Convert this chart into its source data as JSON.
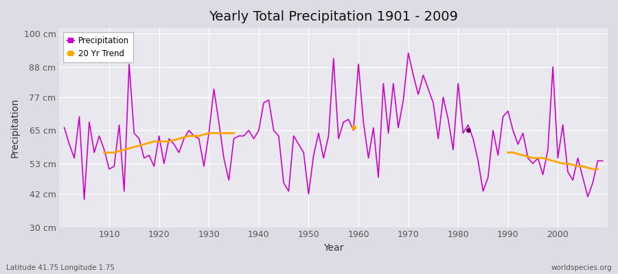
{
  "title": "Yearly Total Precipitation 1901 - 2009",
  "xlabel": "Year",
  "ylabel": "Precipitation",
  "lat_lon_label": "Latitude 41.75 Longitude 1.75",
  "source_label": "worldspecies.org",
  "precip_color": "#cc00cc",
  "trend_color": "#FFA500",
  "background_color": "#dcdce4",
  "plot_bg_color": "#e8e8ee",
  "ylim": [
    30,
    102
  ],
  "yticks": [
    30,
    42,
    53,
    65,
    77,
    88,
    100
  ],
  "ytick_labels": [
    "30 cm",
    "42 cm",
    "53 cm",
    "65 cm",
    "77 cm",
    "88 cm",
    "100 cm"
  ],
  "years": [
    1901,
    1902,
    1903,
    1904,
    1905,
    1906,
    1907,
    1908,
    1909,
    1910,
    1911,
    1912,
    1913,
    1914,
    1915,
    1916,
    1917,
    1918,
    1919,
    1920,
    1921,
    1922,
    1923,
    1924,
    1925,
    1926,
    1927,
    1928,
    1929,
    1930,
    1931,
    1932,
    1933,
    1934,
    1935,
    1936,
    1937,
    1938,
    1939,
    1940,
    1941,
    1942,
    1943,
    1944,
    1945,
    1946,
    1947,
    1948,
    1949,
    1950,
    1951,
    1952,
    1953,
    1954,
    1955,
    1956,
    1957,
    1958,
    1959,
    1960,
    1961,
    1962,
    1963,
    1964,
    1965,
    1966,
    1967,
    1968,
    1969,
    1970,
    1971,
    1972,
    1973,
    1974,
    1975,
    1976,
    1977,
    1978,
    1979,
    1980,
    1981,
    1982,
    1983,
    1984,
    1985,
    1986,
    1987,
    1988,
    1989,
    1990,
    1991,
    1992,
    1993,
    1994,
    1995,
    1996,
    1997,
    1998,
    1999,
    2000,
    2001,
    2002,
    2003,
    2004,
    2005,
    2006,
    2007,
    2008,
    2009
  ],
  "precip": [
    66,
    60,
    55,
    70,
    40,
    68,
    57,
    63,
    58,
    51,
    52,
    67,
    43,
    89,
    64,
    62,
    55,
    56,
    52,
    63,
    53,
    62,
    60,
    57,
    62,
    65,
    63,
    62,
    52,
    64,
    80,
    68,
    55,
    47,
    62,
    63,
    63,
    65,
    62,
    65,
    75,
    76,
    65,
    63,
    46,
    43,
    63,
    60,
    57,
    42,
    56,
    64,
    55,
    63,
    91,
    62,
    68,
    69,
    65,
    89,
    68,
    55,
    66,
    48,
    82,
    64,
    82,
    66,
    76,
    93,
    85,
    78,
    85,
    80,
    75,
    62,
    77,
    69,
    58,
    82,
    64,
    67,
    62,
    54,
    43,
    48,
    65,
    56,
    70,
    72,
    65,
    60,
    64,
    55,
    53,
    55,
    49,
    58,
    88,
    55,
    67,
    50,
    47,
    55,
    48,
    41,
    46,
    54,
    54
  ],
  "trend_segments": [
    {
      "years": [
        1909,
        1910,
        1911,
        1912,
        1913,
        1914,
        1915,
        1916,
        1917,
        1918,
        1919,
        1920,
        1921,
        1922,
        1923,
        1924,
        1925,
        1926,
        1927,
        1928,
        1929,
        1930,
        1931,
        1932,
        1933,
        1934,
        1935
      ],
      "values": [
        57,
        57,
        57,
        57.5,
        58,
        58.5,
        59,
        59.5,
        60,
        60.5,
        61,
        61,
        61,
        61,
        61.5,
        62,
        62.5,
        63,
        63,
        63,
        63.5,
        64,
        64,
        64,
        64,
        64,
        64
      ]
    },
    {
      "years": [
        1990,
        1991,
        1992,
        1993,
        1994,
        1995,
        1996,
        1997,
        1998,
        1999,
        2000,
        2001,
        2002,
        2003,
        2004,
        2005,
        2006,
        2007,
        2008
      ],
      "values": [
        57,
        57,
        56.5,
        56,
        55.5,
        55,
        55,
        55,
        54.5,
        54,
        53.5,
        53,
        53,
        52.5,
        52,
        52,
        51.5,
        51,
        51
      ]
    }
  ],
  "trend_dots": [
    {
      "year": 1959,
      "value": 66,
      "color": "#FFA500"
    },
    {
      "year": 1982,
      "value": 65,
      "color": "#660066"
    }
  ]
}
